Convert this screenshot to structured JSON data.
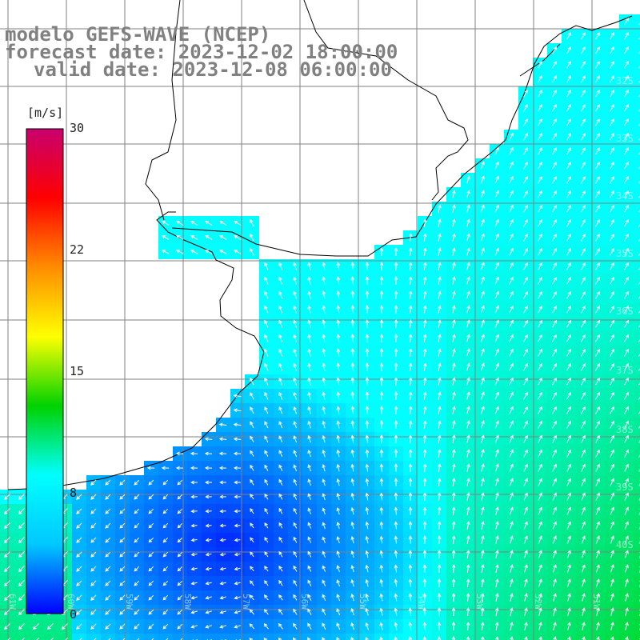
{
  "title": {
    "line1": "modelo GEFS-WAVE (NCEP)",
    "line2": "forecast date: 2023-12-02 18:00:00",
    "line3": "valid date: 2023-12-08 06:00:00"
  },
  "colorbar": {
    "unit": "[m/s]",
    "ticks": [
      "30",
      "22",
      "15",
      "8",
      "0"
    ],
    "tick_values": [
      30,
      22,
      15,
      8,
      0
    ],
    "range": [
      0,
      30
    ],
    "colors": [
      "#0000ff",
      "#00c8ff",
      "#00ffff",
      "#00d200",
      "#ffff00",
      "#ff8c00",
      "#ff0000",
      "#c8006e"
    ]
  },
  "lat_labels": [
    "32S",
    "33S",
    "34S",
    "35S",
    "36S",
    "37S",
    "38S",
    "39S",
    "40S"
  ],
  "lon_labels": [
    "61W",
    "60W",
    "59W",
    "58W",
    "57W",
    "56W",
    "55W",
    "54W",
    "53W",
    "52W",
    "51W"
  ],
  "colors": {
    "land": "#ffffff",
    "grid": "#808080",
    "coast": "#000000",
    "arrow": "#ffffff",
    "title": "#808080"
  }
}
